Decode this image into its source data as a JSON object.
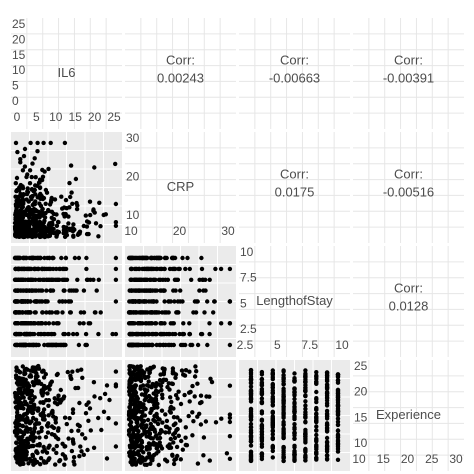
{
  "chart_data": {
    "type": "scatter-matrix",
    "variables": [
      "IL6",
      "CRP",
      "LengthofStay",
      "Experience"
    ],
    "diag_ticks": {
      "IL6": [
        "0",
        "5",
        "10",
        "15",
        "20",
        "25"
      ],
      "CRP": [
        "10",
        "20",
        "30"
      ],
      "LengthofStay": [
        "2.5",
        "5",
        "7.5",
        "10"
      ],
      "Experience": [
        "10",
        "15",
        "20",
        "25",
        "30"
      ]
    },
    "diag_ticks_y": {
      "IL6": [
        "0",
        "5",
        "10",
        "15",
        "20",
        "25"
      ],
      "CRP": [
        "10",
        "20",
        "30"
      ],
      "LengthofStay": [
        "2.5",
        "5",
        "7.5",
        "10"
      ],
      "Experience": [
        "10",
        "15",
        "20",
        "25"
      ]
    },
    "correlations": [
      {
        "row": 0,
        "col": 1,
        "label": "Corr:",
        "value": "0.00243"
      },
      {
        "row": 0,
        "col": 2,
        "label": "Corr:",
        "value": "-0.00663"
      },
      {
        "row": 0,
        "col": 3,
        "label": "Corr:",
        "value": "-0.00391"
      },
      {
        "row": 1,
        "col": 2,
        "label": "Corr:",
        "value": "0.0175"
      },
      {
        "row": 1,
        "col": 3,
        "label": "Corr:",
        "value": "-0.00516"
      },
      {
        "row": 2,
        "col": 3,
        "label": "Corr:",
        "value": "0.0128"
      }
    ],
    "panel_bg": "#ebebeb",
    "point_color": "#000000"
  }
}
